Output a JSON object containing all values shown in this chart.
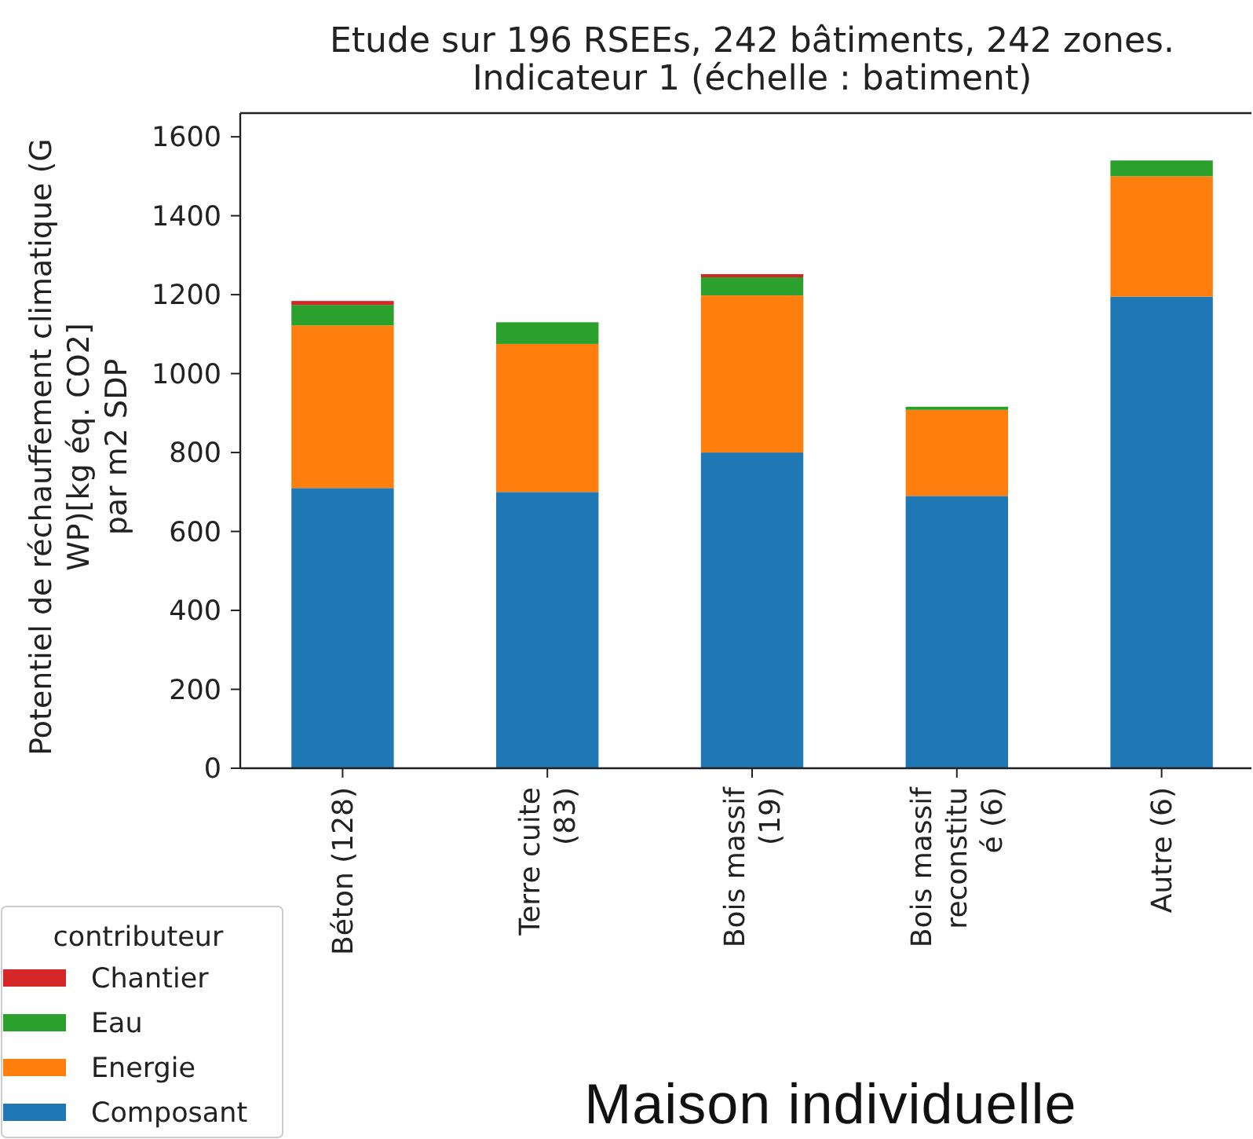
{
  "chart_data": {
    "type": "bar",
    "title": "Etude sur 196 RSEEs, 242 bâtiments, 242 zones.\nIndicateur 1 (échelle : batiment)",
    "ylabel": "Potentiel de réchauffement climatique (G\nWP)[kg éq. CO2]\npar m2 SDP",
    "legend_title": "contributeur",
    "annotations": [
      "Maison individuelle"
    ],
    "categories": [
      "Béton (128)",
      "Terre cuite\n(83)",
      "Bois massif\n(19)",
      "Bois massif\nreconstitu\né (6)",
      "Autre (6)"
    ],
    "series": [
      {
        "name": "Composant",
        "color": "#1f77b4",
        "values": [
          710,
          700,
          800,
          690,
          1195
        ]
      },
      {
        "name": "Energie",
        "color": "#ff7f0e",
        "values": [
          412,
          375,
          398,
          218,
          305
        ]
      },
      {
        "name": "Eau",
        "color": "#2ca02c",
        "values": [
          52,
          55,
          46,
          8,
          40
        ]
      },
      {
        "name": "Chantier",
        "color": "#d62728",
        "values": [
          10,
          0,
          8,
          0,
          0
        ]
      }
    ],
    "stacked": true,
    "ylim": [
      0,
      1660
    ],
    "yticks": [
      0,
      200,
      400,
      600,
      800,
      1000,
      1200,
      1400,
      1600
    ],
    "grid": false,
    "legend": "bottom left"
  }
}
